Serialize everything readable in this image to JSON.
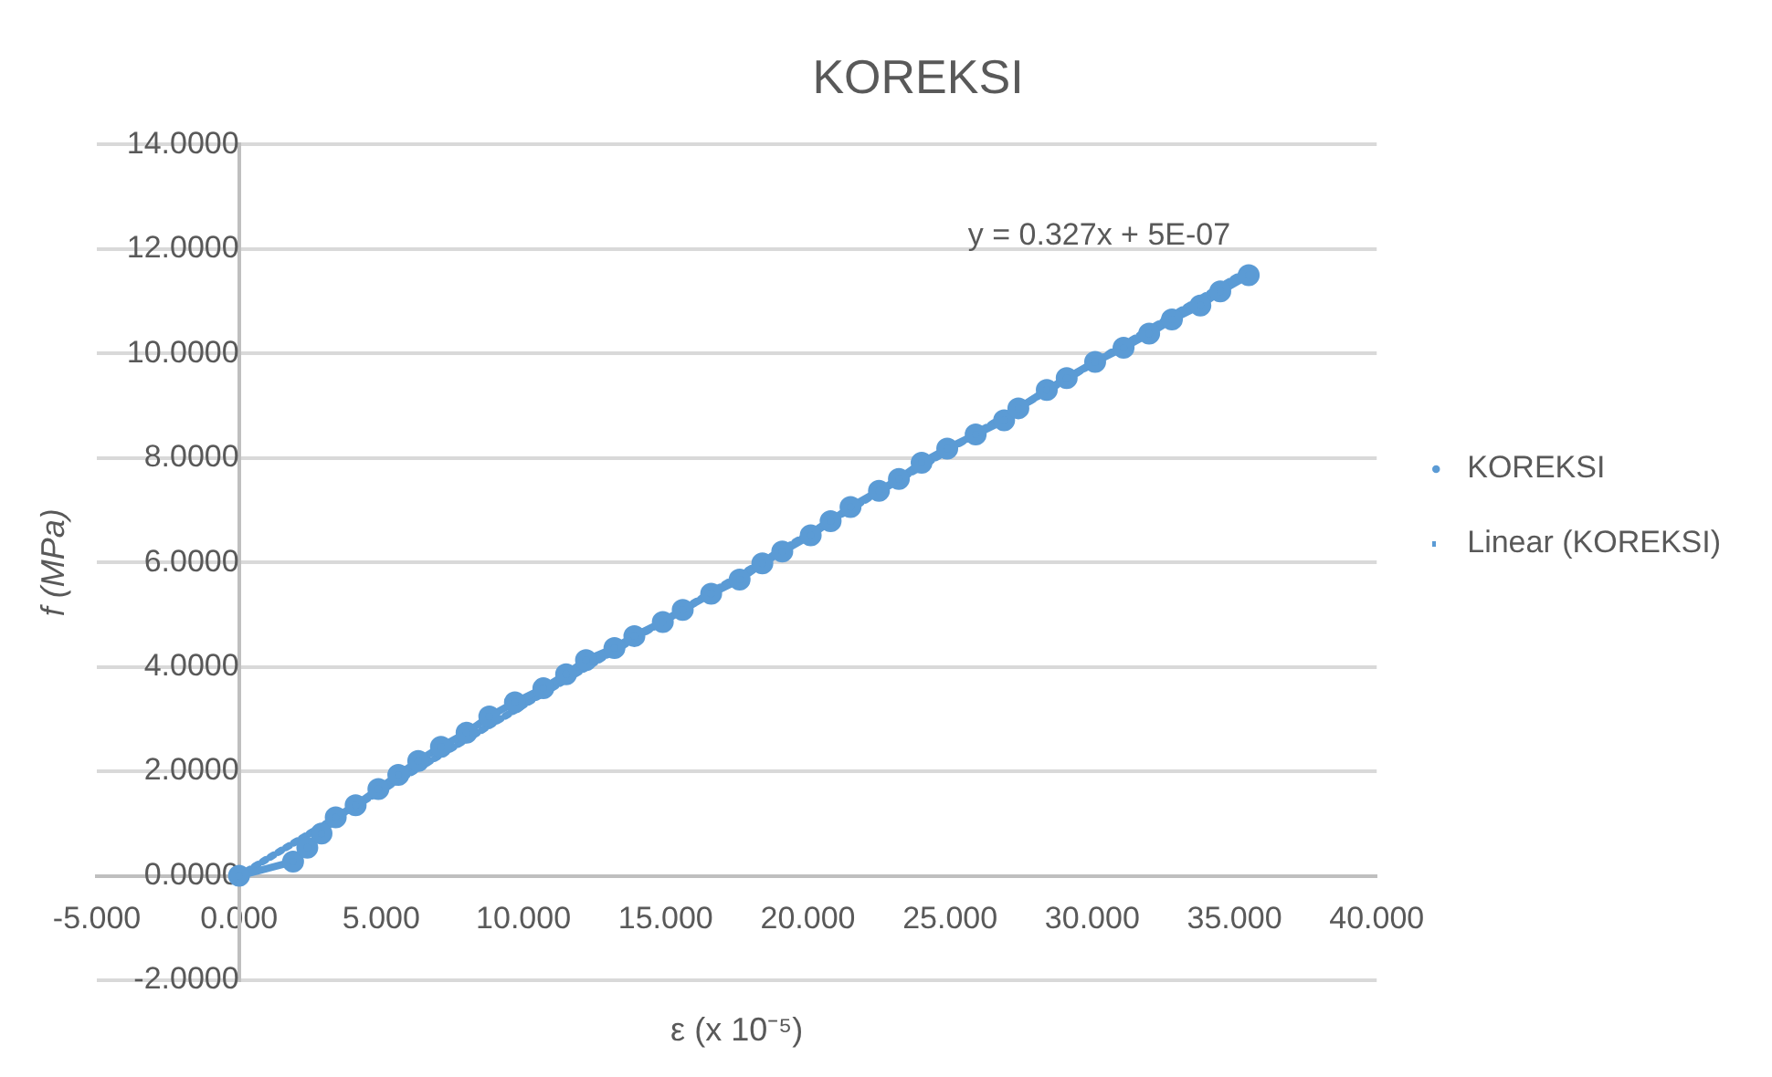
{
  "chart_data": {
    "type": "line",
    "title": "KOREKSI",
    "xlabel": "ε (x 10⁻⁵)",
    "ylabel": "f (MPa)",
    "xlim": [
      -5,
      40
    ],
    "xticks": [
      {
        "value": -5,
        "label": "-5.000"
      },
      {
        "value": 0,
        "label": "0.000"
      },
      {
        "value": 5,
        "label": "5.000"
      },
      {
        "value": 10,
        "label": "10.000"
      },
      {
        "value": 15,
        "label": "15.000"
      },
      {
        "value": 20,
        "label": "20.000"
      },
      {
        "value": 25,
        "label": "25.000"
      },
      {
        "value": 30,
        "label": "30.000"
      },
      {
        "value": 35,
        "label": "35.000"
      },
      {
        "value": 40,
        "label": "40.000"
      }
    ],
    "ylim": [
      -2,
      14
    ],
    "yticks": [
      {
        "value": -2,
        "label": "-2.0000"
      },
      {
        "value": 0,
        "label": "0.0000"
      },
      {
        "value": 2,
        "label": "2.0000"
      },
      {
        "value": 4,
        "label": "4.0000"
      },
      {
        "value": 6,
        "label": "6.0000"
      },
      {
        "value": 8,
        "label": "8.0000"
      },
      {
        "value": 10,
        "label": "10.0000"
      },
      {
        "value": 12,
        "label": "12.0000"
      },
      {
        "value": 14,
        "label": "14.0000"
      }
    ],
    "grid": "y",
    "legend": "right",
    "series": [
      {
        "name": "KOREKSI",
        "color": "#5b9bd5",
        "marker": "circle",
        "line_style": "solid",
        "x": [
          0,
          1.9,
          2.4,
          2.9,
          3.4,
          4.1,
          4.9,
          5.6,
          6.3,
          7.1,
          8.0,
          8.8,
          9.7,
          10.7,
          11.5,
          12.2,
          13.2,
          13.9,
          14.9,
          15.6,
          16.6,
          17.6,
          18.4,
          19.1,
          20.1,
          20.8,
          21.5,
          22.5,
          23.2,
          24.0,
          24.9,
          25.9,
          26.9,
          27.4,
          28.4,
          29.1,
          30.1,
          31.1,
          32.0,
          32.8,
          33.8,
          34.5,
          35.5
        ],
        "values": [
          0,
          0.27,
          0.54,
          0.81,
          1.12,
          1.35,
          1.66,
          1.93,
          2.2,
          2.47,
          2.74,
          3.05,
          3.32,
          3.59,
          3.86,
          4.13,
          4.36,
          4.59,
          4.86,
          5.09,
          5.4,
          5.67,
          5.98,
          6.21,
          6.52,
          6.79,
          7.06,
          7.37,
          7.6,
          7.91,
          8.18,
          8.45,
          8.72,
          8.95,
          9.3,
          9.53,
          9.84,
          10.11,
          10.38,
          10.65,
          10.92,
          11.19,
          11.5
        ]
      },
      {
        "name": "Linear (KOREKSI)",
        "color": "#5b9bd5",
        "marker": "none",
        "line_style": "dotted",
        "x": [
          0,
          35.5
        ],
        "values": [
          0,
          11.6
        ]
      }
    ],
    "annotations": [
      {
        "text": "y = 0.327x + 5E-07",
        "x": 35.5,
        "y": 11.6
      }
    ]
  }
}
